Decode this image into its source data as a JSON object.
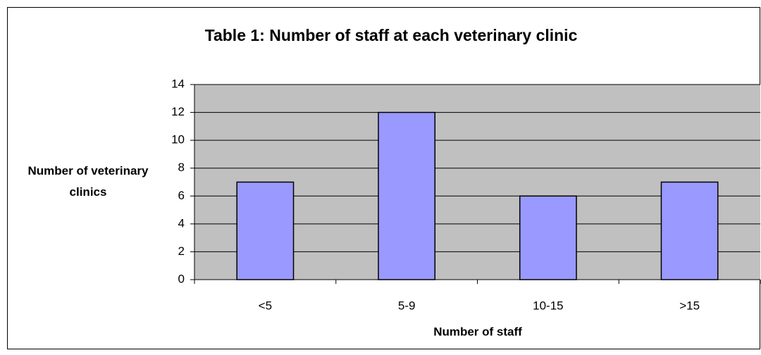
{
  "chart_data": {
    "type": "bar",
    "title": "Table 1: Number of staff at each veterinary clinic",
    "x_label": "Number of staff",
    "y_label": "Number of veterinary clinics",
    "categories": [
      "<5",
      "5-9",
      "10-15",
      ">15"
    ],
    "values": [
      7,
      12,
      6,
      7
    ],
    "color": "#9999ff",
    "ylim": [
      0,
      14
    ],
    "yticks": [
      0,
      2,
      4,
      6,
      8,
      10,
      12,
      14
    ],
    "grid": true
  }
}
